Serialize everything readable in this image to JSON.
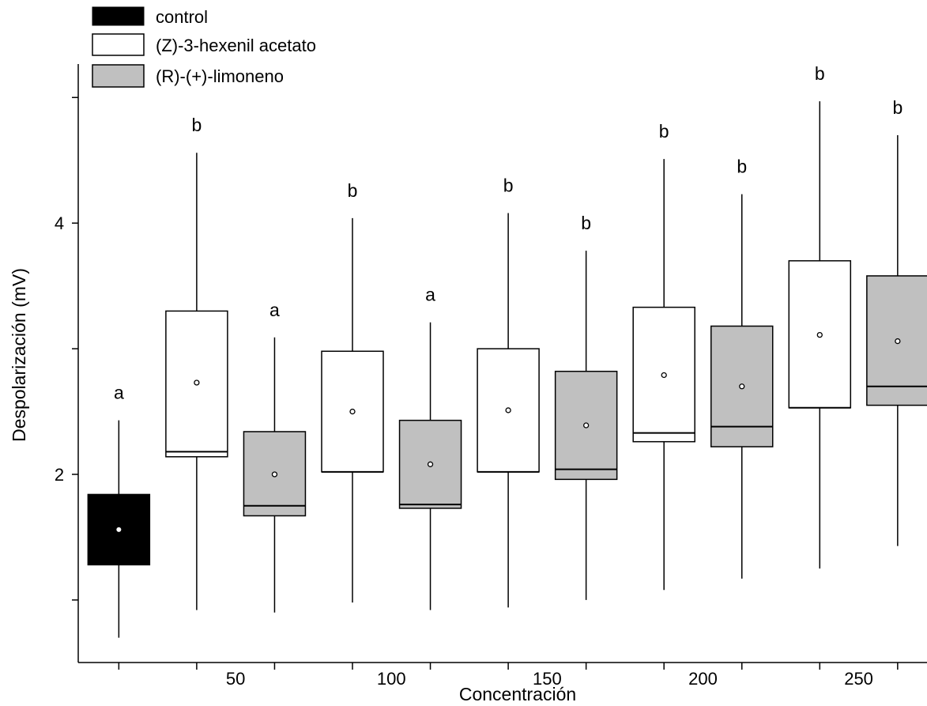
{
  "chart_data": {
    "type": "box",
    "xlabel": "Concentración",
    "ylabel": "Despolarización (mV)",
    "ylim": [
      0.5,
      5.5
    ],
    "yticks": [
      1,
      2,
      3,
      4,
      5
    ],
    "ytick_labels": [
      "2",
      "4"
    ],
    "ytick_label_values": [
      2,
      4
    ],
    "xtick_labels": [
      "50",
      "100",
      "150",
      "200",
      "250"
    ],
    "legend_position": "top-left",
    "legend": [
      {
        "key": "control",
        "label": "control",
        "color": "#000000"
      },
      {
        "key": "hexenil",
        "label": "(Z)-3-hexenil acetato",
        "color": "#ffffff"
      },
      {
        "key": "limoneno",
        "label": "(R)-(+)-limoneno",
        "color": "#c0c0c0"
      }
    ],
    "boxes": [
      {
        "series": "control",
        "x": 1,
        "min": 0.7,
        "q1": 1.28,
        "median": 1.56,
        "q3": 1.84,
        "max": 2.43,
        "mean": 1.56,
        "letter": "a"
      },
      {
        "series": "hexenil",
        "x": 2,
        "concentration": "50",
        "min": 0.92,
        "q1": 2.14,
        "median": 2.18,
        "q3": 3.3,
        "max": 4.56,
        "mean": 2.73,
        "letter": "b"
      },
      {
        "series": "limoneno",
        "x": 3,
        "concentration": "50",
        "min": 0.9,
        "q1": 1.67,
        "median": 1.75,
        "q3": 2.34,
        "max": 3.09,
        "mean": 2.0,
        "letter": "a"
      },
      {
        "series": "hexenil",
        "x": 4,
        "concentration": "100",
        "min": 0.98,
        "q1": 2.02,
        "median": 2.02,
        "q3": 2.98,
        "max": 4.04,
        "mean": 2.5,
        "letter": "b"
      },
      {
        "series": "limoneno",
        "x": 5,
        "concentration": "100",
        "min": 0.92,
        "q1": 1.73,
        "median": 1.76,
        "q3": 2.43,
        "max": 3.21,
        "mean": 2.08,
        "letter": "a"
      },
      {
        "series": "hexenil",
        "x": 6,
        "concentration": "150",
        "min": 0.94,
        "q1": 2.02,
        "median": 2.02,
        "q3": 3.0,
        "max": 4.08,
        "mean": 2.51,
        "letter": "b"
      },
      {
        "series": "limoneno",
        "x": 7,
        "concentration": "150",
        "min": 1.0,
        "q1": 1.96,
        "median": 2.04,
        "q3": 2.82,
        "max": 3.78,
        "mean": 2.39,
        "letter": "b"
      },
      {
        "series": "hexenil",
        "x": 8,
        "concentration": "200",
        "min": 1.08,
        "q1": 2.26,
        "median": 2.33,
        "q3": 3.33,
        "max": 4.51,
        "mean": 2.79,
        "letter": "b"
      },
      {
        "series": "limoneno",
        "x": 9,
        "concentration": "200",
        "min": 1.17,
        "q1": 2.22,
        "median": 2.38,
        "q3": 3.18,
        "max": 4.23,
        "mean": 2.7,
        "letter": "b"
      },
      {
        "series": "hexenil",
        "x": 10,
        "concentration": "250",
        "min": 1.25,
        "q1": 2.53,
        "median": 2.53,
        "q3": 3.7,
        "max": 4.97,
        "mean": 3.11,
        "letter": "b"
      },
      {
        "series": "limoneno",
        "x": 11,
        "concentration": "250",
        "min": 1.43,
        "q1": 2.55,
        "median": 2.7,
        "q3": 3.58,
        "max": 4.7,
        "mean": 3.06,
        "letter": "b"
      }
    ]
  }
}
